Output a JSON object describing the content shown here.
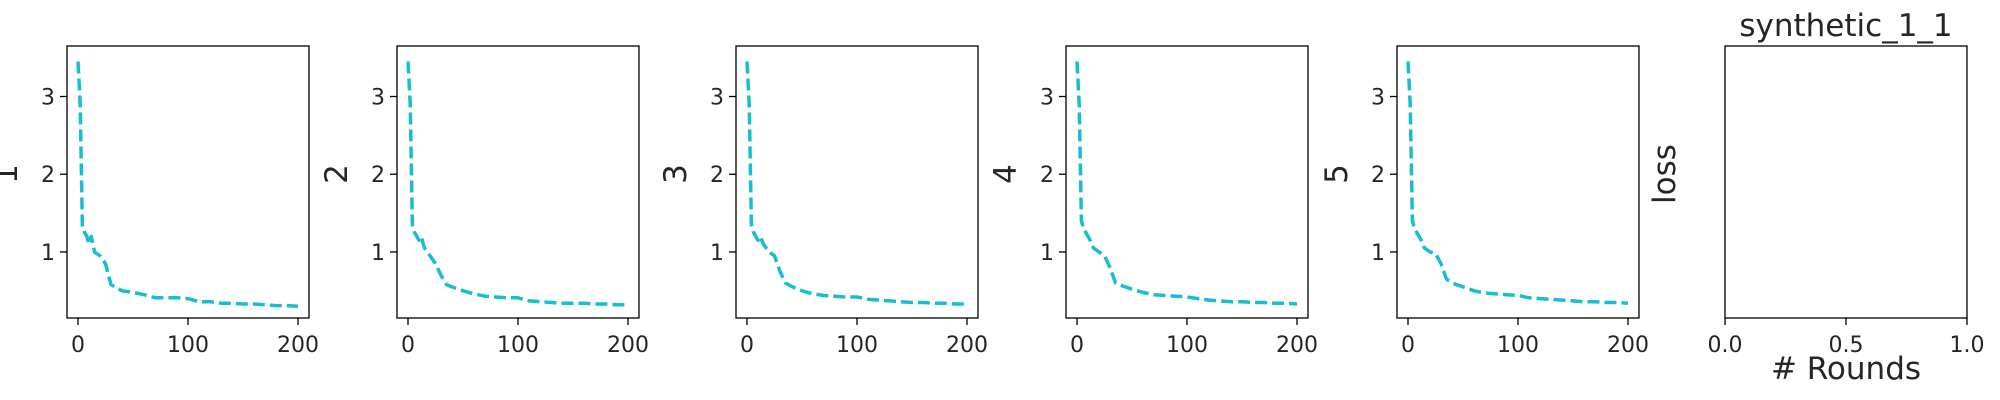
{
  "figure_title": "synthetic_1_1",
  "xlabel": "# Rounds",
  "colors": {
    "series": "#17becf",
    "axes": "#000000"
  },
  "chart_data": [
    {
      "type": "line",
      "ylabel": "1",
      "xlim": [
        -10,
        210
      ],
      "ylim": [
        0.15,
        3.65
      ],
      "xticks": [
        "0",
        "100",
        "200"
      ],
      "yticks": [
        "1",
        "2",
        "3"
      ],
      "series": [
        {
          "style": "dashed",
          "color": "#17becf",
          "x": [
            0,
            2,
            4,
            6,
            8,
            10,
            12,
            15,
            20,
            25,
            30,
            35,
            40,
            50,
            60,
            70,
            80,
            90,
            100,
            110,
            120,
            130,
            140,
            150,
            160,
            170,
            180,
            190,
            200
          ],
          "y": [
            3.45,
            2.9,
            1.3,
            1.25,
            1.2,
            1.1,
            1.2,
            1.0,
            0.95,
            0.85,
            0.58,
            0.54,
            0.5,
            0.48,
            0.45,
            0.41,
            0.41,
            0.41,
            0.4,
            0.36,
            0.36,
            0.34,
            0.34,
            0.33,
            0.33,
            0.32,
            0.31,
            0.31,
            0.3
          ]
        }
      ]
    },
    {
      "type": "line",
      "ylabel": "2",
      "xlim": [
        -10,
        210
      ],
      "ylim": [
        0.15,
        3.65
      ],
      "xticks": [
        "0",
        "100",
        "200"
      ],
      "yticks": [
        "1",
        "2",
        "3"
      ],
      "series": [
        {
          "style": "dashed",
          "color": "#17becf",
          "x": [
            0,
            2,
            4,
            6,
            8,
            10,
            12,
            15,
            20,
            25,
            30,
            35,
            40,
            50,
            60,
            70,
            80,
            90,
            100,
            110,
            120,
            130,
            140,
            150,
            160,
            170,
            180,
            190,
            200
          ],
          "y": [
            3.45,
            2.9,
            1.35,
            1.25,
            1.2,
            1.15,
            1.2,
            1.05,
            0.95,
            0.85,
            0.7,
            0.58,
            0.55,
            0.5,
            0.46,
            0.43,
            0.42,
            0.41,
            0.41,
            0.37,
            0.36,
            0.35,
            0.34,
            0.34,
            0.34,
            0.33,
            0.33,
            0.32,
            0.32
          ]
        }
      ]
    },
    {
      "type": "line",
      "ylabel": "3",
      "xlim": [
        -10,
        210
      ],
      "ylim": [
        0.15,
        3.65
      ],
      "xticks": [
        "0",
        "100",
        "200"
      ],
      "yticks": [
        "1",
        "2",
        "3"
      ],
      "series": [
        {
          "style": "dashed",
          "color": "#17becf",
          "x": [
            0,
            2,
            4,
            6,
            8,
            10,
            12,
            15,
            20,
            25,
            30,
            35,
            40,
            50,
            60,
            70,
            80,
            90,
            100,
            110,
            120,
            130,
            140,
            150,
            160,
            170,
            180,
            190,
            200
          ],
          "y": [
            3.45,
            2.9,
            1.35,
            1.25,
            1.2,
            1.15,
            1.2,
            1.1,
            1.0,
            0.95,
            0.75,
            0.6,
            0.56,
            0.5,
            0.46,
            0.44,
            0.43,
            0.42,
            0.42,
            0.39,
            0.38,
            0.37,
            0.36,
            0.35,
            0.35,
            0.34,
            0.34,
            0.33,
            0.33
          ]
        }
      ]
    },
    {
      "type": "line",
      "ylabel": "4",
      "xlim": [
        -10,
        210
      ],
      "ylim": [
        0.15,
        3.65
      ],
      "xticks": [
        "0",
        "100",
        "200"
      ],
      "yticks": [
        "1",
        "2",
        "3"
      ],
      "series": [
        {
          "style": "dashed",
          "color": "#17becf",
          "x": [
            0,
            2,
            4,
            6,
            8,
            10,
            12,
            15,
            20,
            25,
            30,
            35,
            40,
            50,
            60,
            70,
            80,
            90,
            100,
            110,
            120,
            130,
            140,
            150,
            160,
            170,
            180,
            190,
            200
          ],
          "y": [
            3.45,
            2.9,
            1.4,
            1.3,
            1.25,
            1.2,
            1.15,
            1.05,
            1.0,
            0.95,
            0.8,
            0.6,
            0.57,
            0.52,
            0.48,
            0.45,
            0.44,
            0.43,
            0.42,
            0.4,
            0.38,
            0.37,
            0.36,
            0.36,
            0.35,
            0.35,
            0.34,
            0.34,
            0.33
          ]
        }
      ]
    },
    {
      "type": "line",
      "ylabel": "5",
      "xlim": [
        -10,
        210
      ],
      "ylim": [
        0.15,
        3.65
      ],
      "xticks": [
        "0",
        "100",
        "200"
      ],
      "yticks": [
        "1",
        "2",
        "3"
      ],
      "series": [
        {
          "style": "dashed",
          "color": "#17becf",
          "x": [
            0,
            2,
            4,
            6,
            8,
            10,
            12,
            15,
            20,
            25,
            30,
            35,
            40,
            50,
            60,
            70,
            80,
            90,
            100,
            110,
            120,
            130,
            140,
            150,
            160,
            170,
            180,
            190,
            200
          ],
          "y": [
            3.45,
            2.9,
            1.4,
            1.3,
            1.25,
            1.2,
            1.15,
            1.05,
            1.0,
            0.98,
            0.85,
            0.65,
            0.6,
            0.55,
            0.5,
            0.47,
            0.46,
            0.45,
            0.44,
            0.41,
            0.4,
            0.39,
            0.38,
            0.37,
            0.36,
            0.36,
            0.35,
            0.35,
            0.34
          ]
        }
      ]
    },
    {
      "type": "line",
      "ylabel": "loss",
      "title": "synthetic_1_1",
      "xlabel": "# Rounds",
      "xlim": [
        0,
        1
      ],
      "ylim": [
        0,
        1
      ],
      "xticks": [
        "0.0",
        "0.5",
        "1.0"
      ],
      "yticks": [],
      "series": []
    }
  ]
}
